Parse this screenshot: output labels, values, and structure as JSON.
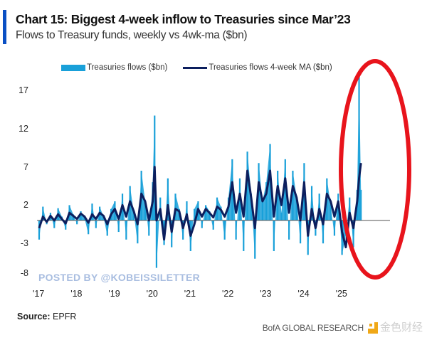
{
  "header": {
    "title": "Chart 15: Biggest 4-week inflow to Treasuries since Mar’23",
    "subtitle": "Flows to Treasury funds, weekly vs 4wk-ma ($bn)"
  },
  "watermark_posted": "POSTED BY @KOBEISSILETTER",
  "footer": {
    "source_label": "Source:",
    "source_value": "EPFR",
    "brand": "BofA GLOBAL RESEARCH",
    "watermark_cn": "金色财经"
  },
  "colors": {
    "flows": "#19a0d9",
    "ma": "#0c1f5e",
    "highlight": "#e8141c",
    "accent": "#0a4fc4"
  },
  "chart_data": {
    "type": "area",
    "title": "Chart 15: Biggest 4-week inflow to Treasuries since Mar’23",
    "subtitle": "Flows to Treasury funds, weekly vs 4wk-ma ($bn)",
    "xlabel": "",
    "ylabel": "$bn",
    "ylim": [
      -8,
      19
    ],
    "yticks": [
      17,
      12,
      7,
      2,
      -3,
      -8
    ],
    "xticks": [
      "'17",
      "'18",
      "'19",
      "'20",
      "'21",
      "'22",
      "'23",
      "'24",
      "'25"
    ],
    "xlim": [
      2017.0,
      2025.55
    ],
    "legend": "top",
    "annotation": "red ellipse highlighting 2024-2025 inflows",
    "series": [
      {
        "name": "Treasuries flows ($bn)",
        "style": "bars",
        "x": [
          2017.0,
          2017.1,
          2017.2,
          2017.3,
          2017.4,
          2017.5,
          2017.6,
          2017.7,
          2017.8,
          2017.9,
          2018.0,
          2018.1,
          2018.2,
          2018.3,
          2018.4,
          2018.5,
          2018.6,
          2018.7,
          2018.8,
          2018.9,
          2019.0,
          2019.1,
          2019.2,
          2019.3,
          2019.4,
          2019.5,
          2019.6,
          2019.7,
          2019.8,
          2019.9,
          2020.0,
          2020.05,
          2020.1,
          2020.2,
          2020.3,
          2020.4,
          2020.5,
          2020.6,
          2020.7,
          2020.8,
          2020.9,
          2021.0,
          2021.1,
          2021.2,
          2021.3,
          2021.4,
          2021.5,
          2021.6,
          2021.7,
          2021.8,
          2021.9,
          2022.0,
          2022.1,
          2022.2,
          2022.3,
          2022.4,
          2022.5,
          2022.6,
          2022.7,
          2022.8,
          2022.9,
          2023.0,
          2023.1,
          2023.2,
          2023.3,
          2023.4,
          2023.5,
          2023.6,
          2023.7,
          2023.8,
          2023.9,
          2024.0,
          2024.1,
          2024.2,
          2024.3,
          2024.4,
          2024.5,
          2024.6,
          2024.7,
          2024.8,
          2024.9,
          2025.0,
          2025.1,
          2025.2,
          2025.3,
          2025.4,
          2025.45,
          2025.5
        ],
        "values": [
          -2.5,
          1.8,
          -0.5,
          1.0,
          -1.0,
          1.6,
          0.5,
          -1.2,
          2.0,
          0.8,
          -0.5,
          1.2,
          0.3,
          -1.8,
          2.2,
          -1.0,
          1.8,
          0.5,
          -2.0,
          1.5,
          2.5,
          -1.5,
          3.5,
          -2.5,
          4.5,
          1.0,
          -3.0,
          6.5,
          2.5,
          -2.0,
          5.0,
          13.7,
          -6.2,
          3.0,
          -3.2,
          5.5,
          -3.5,
          3.5,
          1.5,
          -2.5,
          2.5,
          -4.0,
          1.5,
          2.5,
          -1.0,
          2.0,
          1.2,
          -1.2,
          3.0,
          1.8,
          -2.5,
          3.0,
          8.0,
          -2.5,
          5.5,
          -4.0,
          9.0,
          3.5,
          -5.0,
          7.5,
          2.5,
          5.0,
          10.0,
          -4.0,
          6.5,
          1.0,
          8.0,
          -2.5,
          6.5,
          3.0,
          -3.0,
          7.5,
          -4.5,
          4.5,
          -2.0,
          3.5,
          -3.0,
          5.5,
          2.0,
          -2.0,
          3.5,
          -4.5,
          -2.0,
          3.0,
          -3.5,
          4.0,
          19.0,
          4.0
        ]
      },
      {
        "name": "Treasuries flows 4-week MA ($bn)",
        "style": "line",
        "x": [
          2017.0,
          2017.1,
          2017.2,
          2017.3,
          2017.4,
          2017.5,
          2017.6,
          2017.7,
          2017.8,
          2017.9,
          2018.0,
          2018.1,
          2018.2,
          2018.3,
          2018.4,
          2018.5,
          2018.6,
          2018.7,
          2018.8,
          2018.9,
          2019.0,
          2019.1,
          2019.2,
          2019.3,
          2019.4,
          2019.5,
          2019.6,
          2019.7,
          2019.8,
          2019.9,
          2020.0,
          2020.05,
          2020.1,
          2020.2,
          2020.3,
          2020.4,
          2020.5,
          2020.6,
          2020.7,
          2020.8,
          2020.9,
          2021.0,
          2021.1,
          2021.2,
          2021.3,
          2021.4,
          2021.5,
          2021.6,
          2021.7,
          2021.8,
          2021.9,
          2022.0,
          2022.1,
          2022.2,
          2022.3,
          2022.4,
          2022.5,
          2022.6,
          2022.7,
          2022.8,
          2022.9,
          2023.0,
          2023.1,
          2023.2,
          2023.3,
          2023.4,
          2023.5,
          2023.6,
          2023.7,
          2023.8,
          2023.9,
          2024.0,
          2024.1,
          2024.2,
          2024.3,
          2024.4,
          2024.5,
          2024.6,
          2024.7,
          2024.8,
          2024.9,
          2025.0,
          2025.1,
          2025.2,
          2025.3,
          2025.4,
          2025.45,
          2025.5
        ],
        "values": [
          -1.0,
          0.5,
          -0.2,
          0.6,
          0.0,
          0.8,
          0.2,
          -0.4,
          1.0,
          0.6,
          0.2,
          0.9,
          0.5,
          -0.3,
          0.8,
          0.2,
          1.0,
          0.6,
          -0.5,
          0.8,
          1.5,
          0.2,
          2.0,
          0.5,
          2.5,
          1.2,
          -0.5,
          3.5,
          2.5,
          0.0,
          2.5,
          7.0,
          0.0,
          1.5,
          -2.5,
          2.0,
          -1.5,
          1.5,
          1.2,
          -1.0,
          0.8,
          -2.0,
          -0.5,
          1.5,
          0.5,
          1.5,
          1.0,
          0.4,
          1.8,
          1.4,
          0.5,
          1.8,
          5.0,
          1.0,
          3.5,
          0.5,
          6.5,
          3.0,
          -1.0,
          5.0,
          2.5,
          3.5,
          6.5,
          0.5,
          4.5,
          2.0,
          5.5,
          1.0,
          4.5,
          3.0,
          0.0,
          5.0,
          -2.0,
          1.5,
          -1.0,
          1.5,
          -0.5,
          3.5,
          2.5,
          0.5,
          2.5,
          -1.5,
          -3.5,
          1.0,
          -1.0,
          2.5,
          5.5,
          7.5
        ]
      }
    ]
  }
}
